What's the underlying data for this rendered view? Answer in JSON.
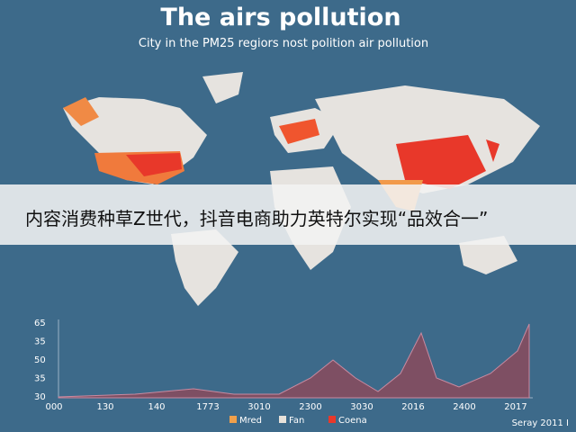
{
  "header": {
    "title": "The airs pollution",
    "subtitle": "City in the PM25 regiors nost polition air pollution"
  },
  "banner": {
    "text": "内容消费种草Z世代，抖音电商助力英特尔实现“品效合一”"
  },
  "chart": {
    "y_labels": [
      "65",
      "35",
      "50",
      "35",
      "30"
    ],
    "x_labels": [
      "000",
      "130",
      "140",
      "1773",
      "3010",
      "2300",
      "3030",
      "2016",
      "2400",
      "2017"
    ],
    "legend": [
      "Mred",
      "Fan",
      "Coena"
    ]
  },
  "footer": {
    "text": "Seray 2011 I"
  }
}
